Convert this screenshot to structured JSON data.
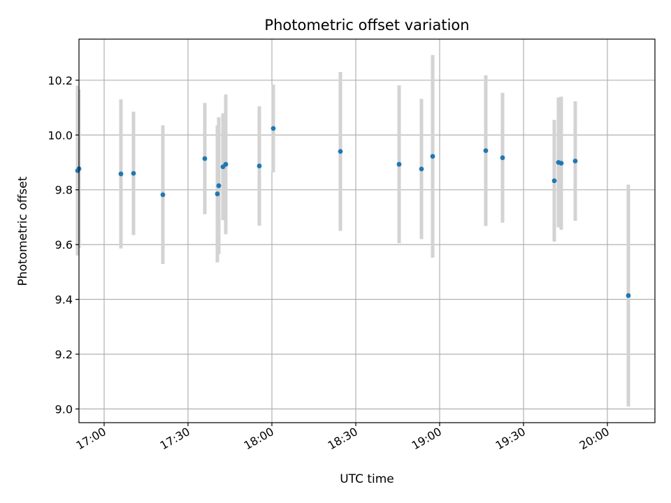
{
  "chart_data": {
    "type": "scatter",
    "title": "Photometric offset variation",
    "xlabel": "UTC time",
    "ylabel": "Photometric offset",
    "xlim": [
      "16:51",
      "20:17"
    ],
    "ylim": [
      8.95,
      10.35
    ],
    "grid": true,
    "x_ticks": [
      "17:00",
      "17:30",
      "18:00",
      "18:30",
      "19:00",
      "19:30",
      "20:00"
    ],
    "y_ticks": [
      9.0,
      9.2,
      9.4,
      9.6,
      9.8,
      10.0,
      10.2
    ],
    "error_bar_color": "#d3d3d3",
    "point_color": "#1f77b4",
    "points": [
      {
        "time": "16:50:30",
        "y": 9.87,
        "err": 0.31
      },
      {
        "time": "16:51:00",
        "y": 9.877,
        "err": 0.29
      },
      {
        "time": "17:06:00",
        "y": 9.858,
        "err": 0.272
      },
      {
        "time": "17:10:30",
        "y": 9.86,
        "err": 0.225
      },
      {
        "time": "17:21:00",
        "y": 9.782,
        "err": 0.253
      },
      {
        "time": "17:36:00",
        "y": 9.914,
        "err": 0.203
      },
      {
        "time": "17:40:30",
        "y": 9.785,
        "err": 0.25
      },
      {
        "time": "17:41:00",
        "y": 9.815,
        "err": 0.25
      },
      {
        "time": "17:42:30",
        "y": 9.884,
        "err": 0.195
      },
      {
        "time": "17:43:30",
        "y": 9.893,
        "err": 0.255
      },
      {
        "time": "17:55:30",
        "y": 9.887,
        "err": 0.218
      },
      {
        "time": "18:00:30",
        "y": 10.024,
        "err": 0.16
      },
      {
        "time": "18:24:30",
        "y": 9.94,
        "err": 0.29
      },
      {
        "time": "18:45:30",
        "y": 9.893,
        "err": 0.288
      },
      {
        "time": "18:53:30",
        "y": 9.876,
        "err": 0.256
      },
      {
        "time": "18:57:30",
        "y": 9.922,
        "err": 0.37
      },
      {
        "time": "19:16:30",
        "y": 9.943,
        "err": 0.275
      },
      {
        "time": "19:22:30",
        "y": 9.917,
        "err": 0.237
      },
      {
        "time": "19:41:00",
        "y": 9.833,
        "err": 0.222
      },
      {
        "time": "19:42:30",
        "y": 9.9,
        "err": 0.237
      },
      {
        "time": "19:43:30",
        "y": 9.897,
        "err": 0.243
      },
      {
        "time": "19:48:30",
        "y": 9.905,
        "err": 0.218
      },
      {
        "time": "20:07:30",
        "y": 9.414,
        "err": 0.405
      }
    ]
  }
}
